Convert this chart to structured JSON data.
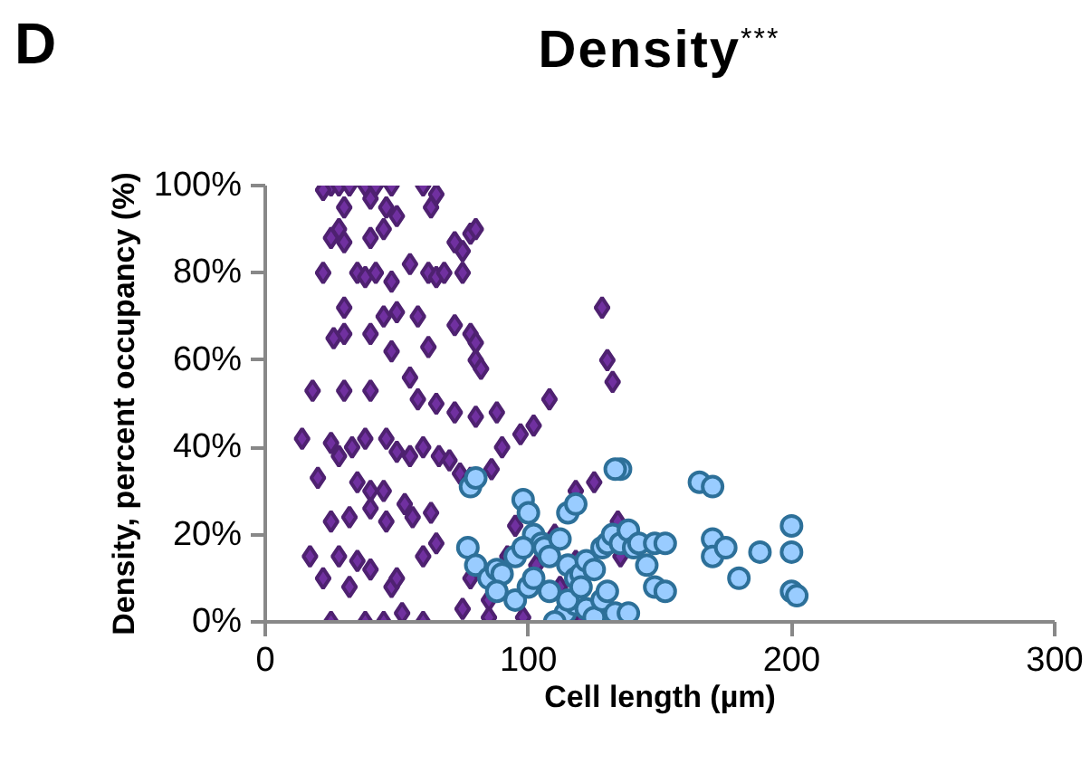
{
  "chart_data": {
    "type": "scatter",
    "title": "Density$^{***}$",
    "xlabel": "Cell length (µm)",
    "ylabel": "Density, percent occupancy (%)",
    "annotations": [
      "D"
    ],
    "xlim": [
      0,
      300
    ],
    "xticks": [
      0,
      100,
      200,
      300
    ],
    "ylim": [
      0,
      100
    ],
    "yticks": [
      {
        "value": 0,
        "label": "0%"
      },
      {
        "value": 20,
        "label": "20%"
      },
      {
        "value": 40,
        "label": "40%"
      },
      {
        "value": 60,
        "label": "60%"
      },
      {
        "value": 80,
        "label": "80%"
      },
      {
        "value": 100,
        "label": "100%"
      }
    ],
    "grid": false,
    "series": [
      {
        "color": "#7030a0",
        "marker": "diamond",
        "x": [
          25,
          28,
          32,
          38,
          42,
          48,
          22,
          30,
          40,
          46,
          50,
          25,
          28,
          30,
          40,
          45,
          60,
          65,
          63,
          78,
          80,
          72,
          75,
          22,
          35,
          38,
          42,
          48,
          55,
          62,
          65,
          68,
          75,
          30,
          45,
          50,
          58,
          72,
          78,
          80,
          128,
          40,
          30,
          26,
          48,
          62,
          80,
          82,
          130,
          132,
          55,
          40,
          30,
          18,
          58,
          65,
          72,
          80,
          88,
          102,
          108,
          97,
          14,
          25,
          28,
          33,
          38,
          46,
          50,
          55,
          60,
          66,
          70,
          74,
          78,
          86,
          90,
          20,
          35,
          40,
          45,
          63,
          53,
          46,
          25,
          32,
          40,
          56,
          95,
          118,
          125,
          92,
          110,
          17,
          28,
          35,
          40,
          22,
          32,
          48,
          50,
          60,
          65,
          78,
          85,
          112,
          118,
          75,
          25,
          38,
          45,
          52,
          60,
          85,
          98,
          135,
          134,
          103,
          120
        ],
        "values": [
          100,
          100,
          100,
          100,
          100,
          100,
          99,
          95,
          97,
          95,
          93,
          88,
          90,
          87,
          88,
          90,
          100,
          98,
          95,
          89,
          90,
          87,
          85,
          80,
          80,
          79,
          80,
          78,
          82,
          80,
          79,
          80,
          80,
          72,
          70,
          71,
          70,
          68,
          66,
          64,
          72,
          66,
          66,
          65,
          62,
          63,
          60,
          58,
          60,
          55,
          56,
          53,
          53,
          53,
          51,
          50,
          48,
          47,
          48,
          45,
          51,
          43,
          42,
          41,
          38,
          40,
          42,
          42,
          39,
          38,
          40,
          38,
          37,
          34,
          33,
          35,
          40,
          33,
          32,
          30,
          30,
          25,
          27,
          23,
          23,
          24,
          26,
          24,
          22,
          30,
          32,
          15,
          20,
          15,
          15,
          14,
          12,
          10,
          8,
          8,
          10,
          15,
          18,
          10,
          5,
          8,
          14,
          3,
          0,
          0,
          0,
          2,
          0,
          1,
          1,
          15,
          23,
          13,
          0
        ]
      },
      {
        "color": "#99ccff",
        "marker": "circle",
        "x": [
          78,
          80,
          98,
          100,
          102,
          115,
          118,
          135,
          133,
          165,
          170,
          77,
          80,
          85,
          88,
          90,
          95,
          100,
          105,
          106,
          108,
          112,
          115,
          118,
          120,
          122,
          125,
          128,
          130,
          132,
          135,
          138,
          140,
          142,
          148,
          152,
          145,
          148,
          152,
          170,
          170,
          175,
          180,
          188,
          200,
          200,
          200,
          202,
          114,
          118,
          122,
          125,
          128,
          130,
          133,
          138,
          102,
          108,
          115,
          120,
          95,
          98,
          88,
          110
        ],
        "values": [
          31,
          33,
          28,
          25,
          20,
          25,
          27,
          35,
          35,
          32,
          31,
          17,
          13,
          10,
          12,
          11,
          5,
          8,
          18,
          17,
          15,
          19,
          13,
          10,
          11,
          14,
          12,
          17,
          18,
          20,
          18,
          21,
          17,
          18,
          18,
          18,
          13,
          8,
          7,
          19,
          15,
          17,
          10,
          16,
          22,
          16,
          7,
          6,
          2,
          4,
          3,
          1,
          5,
          7,
          2,
          2,
          10,
          7,
          5,
          8,
          15,
          17,
          7,
          0
        ]
      }
    ]
  }
}
